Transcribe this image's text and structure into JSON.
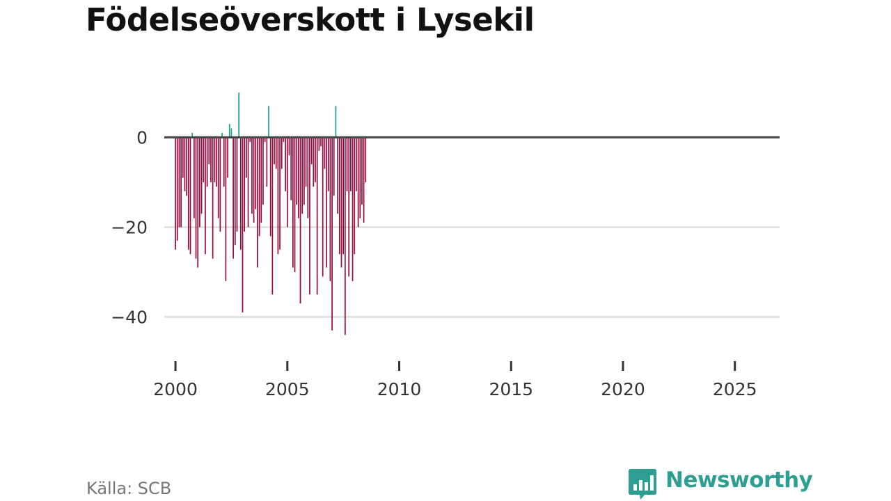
{
  "header": {
    "title": "Födelseöverskott i Lysekil"
  },
  "footer": {
    "source": "Källa: SCB",
    "brand": "Newsworthy"
  },
  "chart_data": {
    "type": "bar",
    "title": "Födelseöverskott i Lysekil",
    "xlabel": "",
    "ylabel": "",
    "xlim": [
      1999.5,
      2027.0
    ],
    "ylim": [
      -50,
      12
    ],
    "yticks": [
      0,
      -20,
      -40
    ],
    "ytick_labels": [
      "0",
      "−20",
      "−40"
    ],
    "xticks": [
      2000,
      2005,
      2010,
      2015,
      2020,
      2025
    ],
    "xtick_labels": [
      "2000",
      "2005",
      "2010",
      "2015",
      "2020",
      "2025"
    ],
    "grid": true,
    "colors": {
      "positive": "#1a9e92",
      "negative": "#950c3e",
      "zero_line": "#444444",
      "grid": "#dddddd"
    },
    "period": "monthly",
    "start": "2000-01",
    "values": [
      -25,
      -23,
      -20,
      -20,
      -9,
      -12,
      -13,
      -25,
      -26,
      1,
      -18,
      -27,
      -29,
      -20,
      -17,
      -10,
      -26,
      -11,
      -6,
      -10,
      -27,
      -10,
      -11,
      -18,
      -21,
      1,
      -11,
      -32,
      -9,
      3,
      2,
      -27,
      -24,
      -21,
      10,
      -25,
      -39,
      -21,
      -9,
      -20,
      -1,
      -17,
      -19,
      -16,
      -29,
      -22,
      -19,
      -15,
      -1,
      -11,
      7,
      -22,
      -35,
      -6,
      -7,
      -26,
      -25,
      -7,
      -1,
      -12,
      -20,
      -4,
      -14,
      -29,
      -30,
      -15,
      -18,
      -37,
      -17,
      -15,
      -11,
      -18,
      -35,
      -6,
      -11,
      -10,
      -35,
      -3,
      -2,
      -31,
      -7,
      -29,
      -12,
      -32,
      -43,
      -13,
      7,
      -17,
      -26,
      -29,
      -26,
      -44,
      -12,
      -31,
      -12,
      -32,
      -26,
      -12,
      -20,
      -18,
      -15,
      -19,
      -10
    ]
  }
}
